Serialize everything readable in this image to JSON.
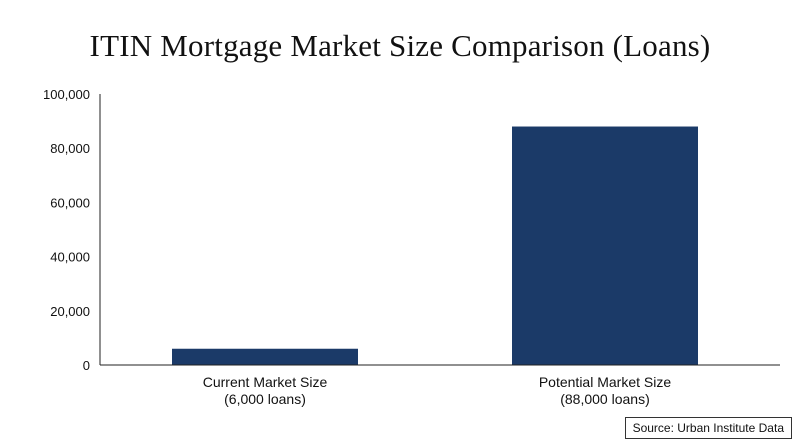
{
  "chart_data": {
    "type": "bar",
    "title": "ITIN Mortgage Market Size Comparison (Loans)",
    "xlabel": "",
    "ylabel": "",
    "categories": [
      [
        "Current Market Size",
        "(6,000 loans)"
      ],
      [
        "Potential Market Size",
        "(88,000 loans)"
      ]
    ],
    "values": [
      6000,
      88000
    ],
    "ylim": [
      0,
      100000
    ],
    "yticks": [
      0,
      20000,
      40000,
      60000,
      80000,
      100000
    ],
    "ytick_labels": [
      "0",
      "20,000",
      "40,000",
      "60,000",
      "80,000",
      "100,000"
    ],
    "bar_color": "#1b3a68",
    "grid": false,
    "legend": false
  },
  "source_note": "Source: Urban Institute Data"
}
